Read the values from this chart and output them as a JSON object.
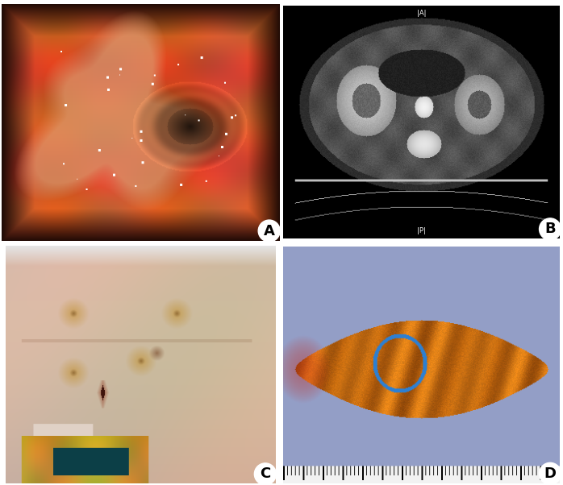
{
  "figure_width": 6.98,
  "figure_height": 6.02,
  "dpi": 100,
  "label_A": "A",
  "label_B": "B",
  "label_C": "C",
  "label_D": "D",
  "label_fontsize": 12,
  "panel_A_bg": [
    200,
    80,
    40
  ],
  "panel_B_bg": [
    0,
    0,
    0
  ],
  "panel_C_bg": [
    220,
    195,
    175
  ],
  "panel_D_bg": [
    145,
    155,
    200
  ],
  "gap_color": "#ffffff",
  "border_width": 3
}
